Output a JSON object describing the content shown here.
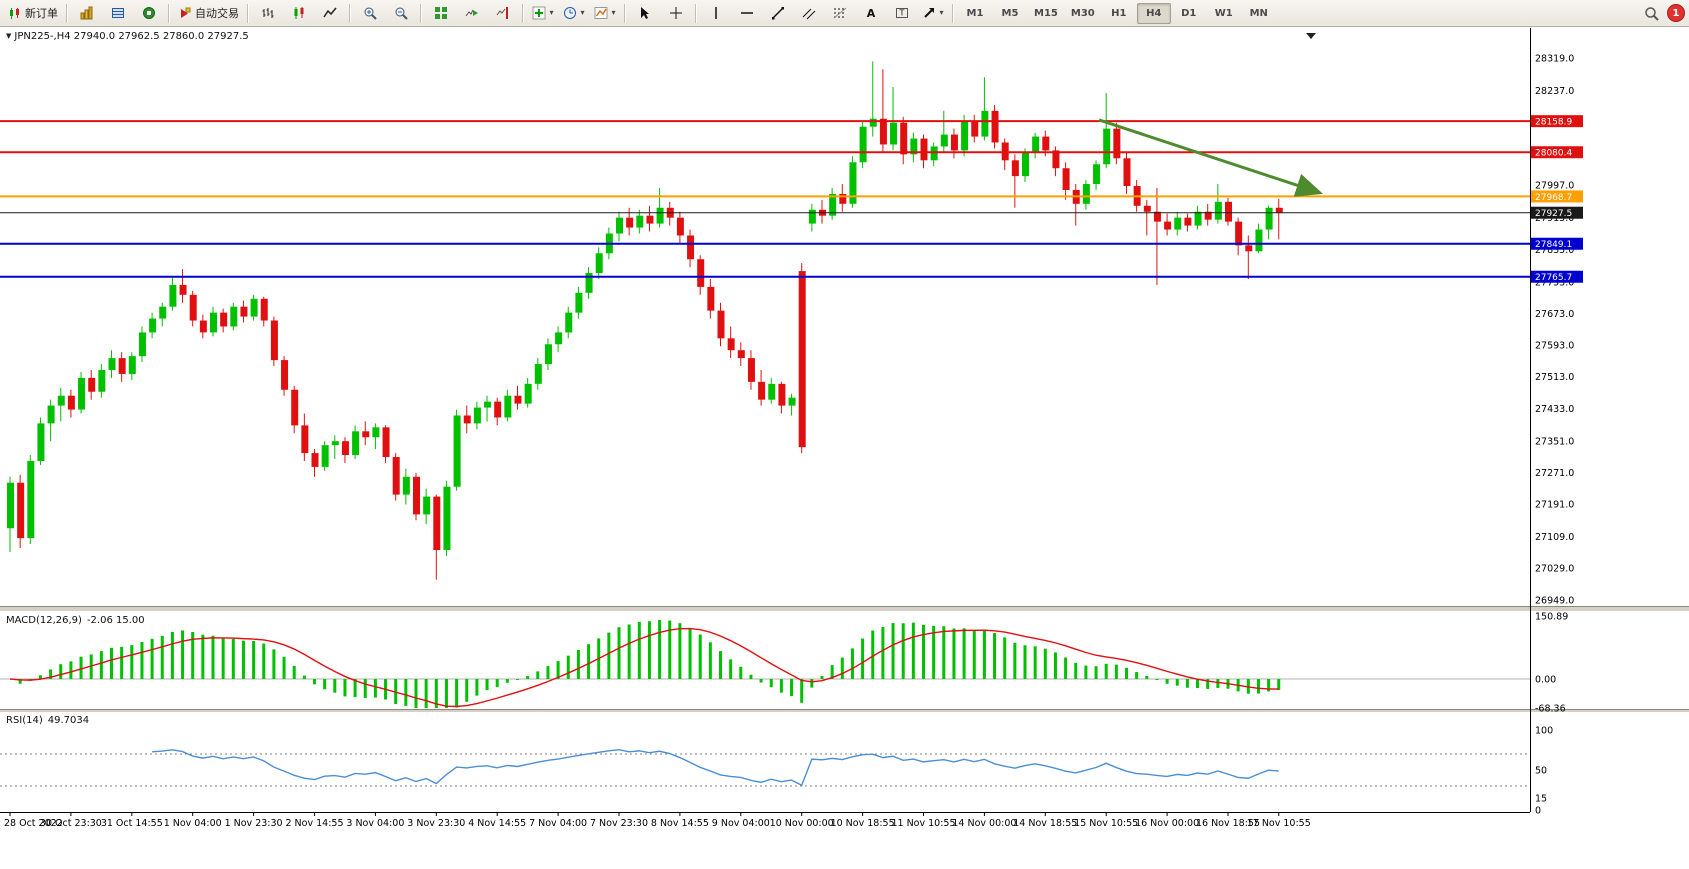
{
  "toolbar": {
    "new_order_label": "新订单",
    "autotrading_label": "自动交易",
    "timeframes": [
      "M1",
      "M5",
      "M15",
      "M30",
      "H1",
      "H4",
      "D1",
      "W1",
      "MN"
    ],
    "active_timeframe": "H4",
    "notification_count": "1"
  },
  "chart_data": {
    "type": "candlestick",
    "symbol": "JPN225-",
    "timeframe": "H4",
    "symbol_line": "JPN225-,H4 27940.0 27962.5 27860.0 27927.5",
    "current_bar": {
      "open": 27940.0,
      "high": 27962.5,
      "low": 27860.0,
      "close": 27927.5
    },
    "colors": {
      "up": "#00C000",
      "down": "#E01010",
      "background": "#FFFFFF"
    },
    "price_range": [
      26936,
      28359
    ],
    "price_axis_labels": [
      "28319.0",
      "28237.0",
      "27997.0",
      "27915.0",
      "27835.0",
      "27753.0",
      "27673.0",
      "27593.0",
      "27513.0",
      "27433.0",
      "27351.0",
      "27271.0",
      "27191.0",
      "27109.0",
      "27029.0",
      "26949.0"
    ],
    "hlines": [
      {
        "price": 28158.9,
        "label": "28158.9",
        "color": "#E01010",
        "width": 2
      },
      {
        "price": 28080.4,
        "label": "28080.4",
        "color": "#E01010",
        "width": 2
      },
      {
        "price": 27968.7,
        "label": "27968.7",
        "color": "#FFA000",
        "width": 2
      },
      {
        "price": 27927.5,
        "label": "27927.5",
        "color": "#1A1A1A",
        "width": 1
      },
      {
        "price": 27849.1,
        "label": "27849.1",
        "color": "#0000D0",
        "width": 2
      },
      {
        "price": 27765.7,
        "label": "27765.7",
        "color": "#0000D0",
        "width": 2
      }
    ],
    "arrow": {
      "from": {
        "index": 107.3,
        "price": 28162
      },
      "to": {
        "index": 128.8,
        "price": 27980
      },
      "color": "#4E8B2E"
    },
    "time_axis": {
      "labels": [
        "28 Oct 2022",
        "30 Oct 23:30",
        "31 Oct 14:55",
        "1 Nov 04:00",
        "1 Nov 23:30",
        "2 Nov 14:55",
        "3 Nov 04:00",
        "3 Nov 23:30",
        "4 Nov 14:55",
        "7 Nov 04:00",
        "7 Nov 23:30",
        "8 Nov 14:55",
        "9 Nov 04:00",
        "10 Nov 00:00",
        "10 Nov 18:55",
        "11 Nov 10:55",
        "14 Nov 00:00",
        "14 Nov 18:55",
        "15 Nov 10:55",
        "16 Nov 00:00",
        "16 Nov 18:55",
        "17 Nov 10:55"
      ],
      "indices": [
        0,
        6,
        12,
        18,
        24,
        30,
        36,
        42,
        48,
        54,
        60,
        66,
        72,
        78,
        84,
        90,
        96,
        102,
        108,
        114,
        120,
        125
      ]
    },
    "candles": [
      [
        27130,
        27260,
        27070,
        27245
      ],
      [
        27245,
        27265,
        27080,
        27105
      ],
      [
        27105,
        27315,
        27090,
        27300
      ],
      [
        27300,
        27410,
        27290,
        27395
      ],
      [
        27395,
        27455,
        27350,
        27440
      ],
      [
        27440,
        27485,
        27400,
        27465
      ],
      [
        27465,
        27480,
        27410,
        27430
      ],
      [
        27430,
        27525,
        27420,
        27510
      ],
      [
        27510,
        27530,
        27455,
        27475
      ],
      [
        27475,
        27545,
        27460,
        27530
      ],
      [
        27530,
        27580,
        27510,
        27560
      ],
      [
        27560,
        27575,
        27500,
        27520
      ],
      [
        27520,
        27575,
        27505,
        27565
      ],
      [
        27565,
        27640,
        27550,
        27625
      ],
      [
        27625,
        27675,
        27610,
        27660
      ],
      [
        27660,
        27700,
        27640,
        27690
      ],
      [
        27690,
        27765,
        27680,
        27745
      ],
      [
        27745,
        27785,
        27700,
        27720
      ],
      [
        27720,
        27730,
        27640,
        27655
      ],
      [
        27655,
        27670,
        27610,
        27625
      ],
      [
        27625,
        27690,
        27615,
        27675
      ],
      [
        27675,
        27685,
        27625,
        27640
      ],
      [
        27640,
        27700,
        27630,
        27690
      ],
      [
        27690,
        27705,
        27650,
        27665
      ],
      [
        27665,
        27720,
        27655,
        27710
      ],
      [
        27710,
        27715,
        27640,
        27655
      ],
      [
        27655,
        27665,
        27540,
        27555
      ],
      [
        27555,
        27565,
        27465,
        27480
      ],
      [
        27480,
        27490,
        27370,
        27390
      ],
      [
        27390,
        27420,
        27300,
        27320
      ],
      [
        27320,
        27330,
        27260,
        27285
      ],
      [
        27285,
        27350,
        27275,
        27340
      ],
      [
        27340,
        27365,
        27305,
        27350
      ],
      [
        27350,
        27360,
        27295,
        27315
      ],
      [
        27315,
        27390,
        27305,
        27375
      ],
      [
        27375,
        27400,
        27340,
        27360
      ],
      [
        27360,
        27395,
        27330,
        27385
      ],
      [
        27385,
        27390,
        27295,
        27310
      ],
      [
        27310,
        27320,
        27200,
        27215
      ],
      [
        27215,
        27280,
        27190,
        27260
      ],
      [
        27260,
        27270,
        27150,
        27165
      ],
      [
        27165,
        27230,
        27140,
        27210
      ],
      [
        27210,
        27215,
        27000,
        27075
      ],
      [
        27075,
        27250,
        27060,
        27235
      ],
      [
        27235,
        27430,
        27225,
        27415
      ],
      [
        27415,
        27440,
        27370,
        27395
      ],
      [
        27395,
        27450,
        27380,
        27435
      ],
      [
        27435,
        27465,
        27400,
        27450
      ],
      [
        27450,
        27460,
        27390,
        27410
      ],
      [
        27410,
        27480,
        27400,
        27465
      ],
      [
        27465,
        27490,
        27430,
        27445
      ],
      [
        27445,
        27510,
        27435,
        27495
      ],
      [
        27495,
        27560,
        27480,
        27545
      ],
      [
        27545,
        27610,
        27530,
        27595
      ],
      [
        27595,
        27640,
        27575,
        27625
      ],
      [
        27625,
        27690,
        27610,
        27675
      ],
      [
        27675,
        27740,
        27660,
        27725
      ],
      [
        27725,
        27790,
        27710,
        27775
      ],
      [
        27775,
        27840,
        27760,
        27825
      ],
      [
        27825,
        27890,
        27810,
        27875
      ],
      [
        27875,
        27930,
        27855,
        27915
      ],
      [
        27915,
        27940,
        27870,
        27890
      ],
      [
        27890,
        27935,
        27875,
        27920
      ],
      [
        27920,
        27945,
        27880,
        27900
      ],
      [
        27900,
        27990,
        27890,
        27940
      ],
      [
        27940,
        27955,
        27895,
        27915
      ],
      [
        27915,
        27930,
        27850,
        27870
      ],
      [
        27870,
        27885,
        27790,
        27810
      ],
      [
        27810,
        27820,
        27720,
        27740
      ],
      [
        27740,
        27760,
        27660,
        27680
      ],
      [
        27680,
        27700,
        27590,
        27610
      ],
      [
        27610,
        27640,
        27560,
        27580
      ],
      [
        27580,
        27600,
        27540,
        27560
      ],
      [
        27560,
        27580,
        27480,
        27500
      ],
      [
        27500,
        27530,
        27440,
        27455
      ],
      [
        27455,
        27510,
        27445,
        27495
      ],
      [
        27495,
        27500,
        27420,
        27440
      ],
      [
        27440,
        27470,
        27415,
        27460
      ],
      [
        27780,
        27800,
        27320,
        27335
      ],
      [
        27900,
        27950,
        27880,
        27935
      ],
      [
        27935,
        27960,
        27900,
        27920
      ],
      [
        27920,
        27990,
        27910,
        27975
      ],
      [
        27975,
        28000,
        27930,
        27950
      ],
      [
        27950,
        28070,
        27940,
        28055
      ],
      [
        28055,
        28160,
        28040,
        28145
      ],
      [
        28145,
        28310,
        28120,
        28165
      ],
      [
        28165,
        28290,
        28080,
        28100
      ],
      [
        28100,
        28245,
        28085,
        28155
      ],
      [
        28155,
        28170,
        28050,
        28075
      ],
      [
        28075,
        28130,
        28055,
        28115
      ],
      [
        28115,
        28125,
        28040,
        28060
      ],
      [
        28060,
        28105,
        28045,
        28095
      ],
      [
        28095,
        28185,
        28080,
        28125
      ],
      [
        28125,
        28140,
        28065,
        28085
      ],
      [
        28085,
        28175,
        28070,
        28160
      ],
      [
        28160,
        28175,
        28105,
        28120
      ],
      [
        28120,
        28270,
        28110,
        28185
      ],
      [
        28185,
        28200,
        28090,
        28105
      ],
      [
        28105,
        28115,
        28035,
        28060
      ],
      [
        28060,
        28075,
        27940,
        28020
      ],
      [
        28020,
        28090,
        28005,
        28080
      ],
      [
        28080,
        28130,
        28065,
        28120
      ],
      [
        28120,
        28135,
        28070,
        28085
      ],
      [
        28085,
        28095,
        28020,
        28040
      ],
      [
        28040,
        28055,
        27960,
        27985
      ],
      [
        27985,
        28000,
        27895,
        27950
      ],
      [
        27950,
        28010,
        27935,
        28000
      ],
      [
        28000,
        28060,
        27985,
        28050
      ],
      [
        28050,
        28230,
        28040,
        28140
      ],
      [
        28140,
        28155,
        28050,
        28065
      ],
      [
        28065,
        28080,
        27975,
        27995
      ],
      [
        27995,
        28010,
        27930,
        27945
      ],
      [
        27945,
        27960,
        27870,
        27930
      ],
      [
        27930,
        27990,
        27745,
        27905
      ],
      [
        27905,
        27925,
        27870,
        27885
      ],
      [
        27885,
        27930,
        27870,
        27915
      ],
      [
        27915,
        27925,
        27880,
        27895
      ],
      [
        27895,
        27945,
        27885,
        27930
      ],
      [
        27930,
        27950,
        27895,
        27910
      ],
      [
        27910,
        28000,
        27900,
        27955
      ],
      [
        27955,
        27965,
        27895,
        27905
      ],
      [
        27905,
        27915,
        27820,
        27845
      ],
      [
        27845,
        27870,
        27760,
        27830
      ],
      [
        27830,
        27900,
        27825,
        27885
      ],
      [
        27885,
        27945,
        27860,
        27940
      ],
      [
        27940,
        27962.5,
        27860,
        27927.5
      ]
    ],
    "indicators": {
      "macd": {
        "title": "MACD(12,26,9)",
        "values_text": "-2.06 15.00",
        "fast": 12,
        "slow": 26,
        "signal": 9,
        "axis_labels": [
          "150.89",
          "0.00",
          "-68.36"
        ],
        "histogram_color": "#00C000",
        "signal_color": "#E01010"
      },
      "rsi": {
        "title": "RSI(14)",
        "value_text": "49.7034",
        "period": 14,
        "levels": [
          70,
          30
        ],
        "axis_labels": [
          "100",
          "50",
          "15",
          "0"
        ],
        "line_color": "#4B8FD5"
      }
    }
  }
}
